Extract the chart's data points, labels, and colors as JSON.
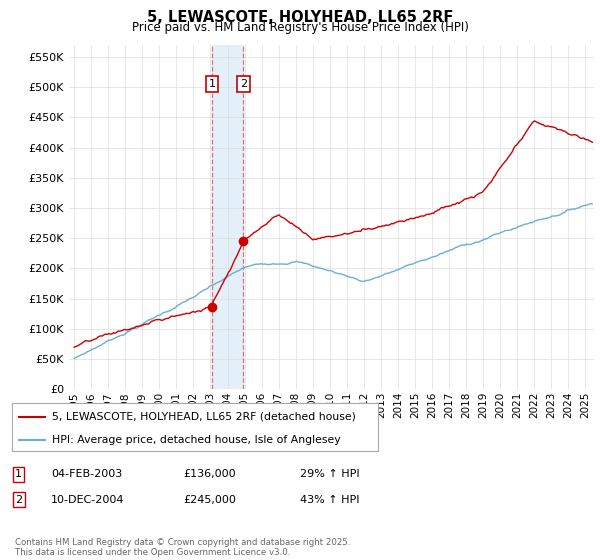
{
  "title": "5, LEWASCOTE, HOLYHEAD, LL65 2RF",
  "subtitle": "Price paid vs. HM Land Registry's House Price Index (HPI)",
  "ylim": [
    0,
    570000
  ],
  "ytick_vals": [
    0,
    50000,
    100000,
    150000,
    200000,
    250000,
    300000,
    350000,
    400000,
    450000,
    500000,
    550000
  ],
  "hpi_color": "#6baed6",
  "price_color": "#cc0000",
  "sale1_year": 2003.09,
  "sale1_price": 136000,
  "sale2_year": 2004.93,
  "sale2_price": 245000,
  "sale1_date": "04-FEB-2003",
  "sale1_pct": "29%",
  "sale2_date": "10-DEC-2004",
  "sale2_pct": "43%",
  "legend_label1": "5, LEWASCOTE, HOLYHEAD, LL65 2RF (detached house)",
  "legend_label2": "HPI: Average price, detached house, Isle of Anglesey",
  "footnote": "Contains HM Land Registry data © Crown copyright and database right 2025.\nThis data is licensed under the Open Government Licence v3.0.",
  "background_color": "#ffffff",
  "grid_color": "#dddddd",
  "xmin": 1994.7,
  "xmax": 2025.5
}
